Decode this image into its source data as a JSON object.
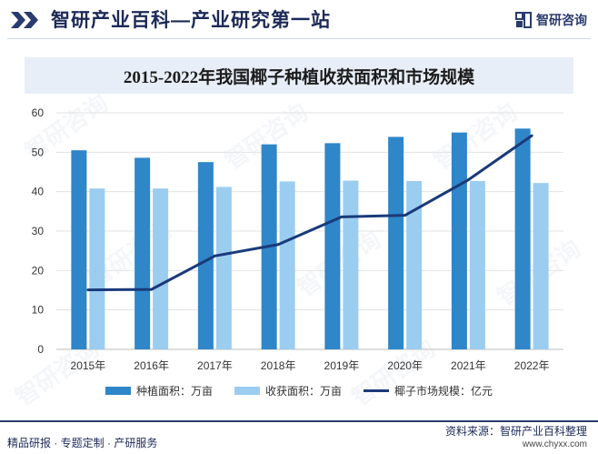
{
  "header": {
    "title": "智研产业百科—产业研究第一站",
    "brand": "智研咨询",
    "logo_icon": "zhiyan-logo-icon"
  },
  "watermark": "智研咨询",
  "footer": {
    "left": "精品研报 · 专题定制 · 产研服务",
    "source": "资料来源：智研产业百科整理",
    "url": "www.chyxx.com"
  },
  "colors": {
    "bar_planted": "#2f86c8",
    "bar_harvested": "#9bcdf0",
    "line_market": "#1a3a7a",
    "accent": "#1d2a57"
  },
  "chart_data": {
    "type": "bar",
    "title": "2015-2022年我国椰子种植收获面积和市场规模",
    "categories": [
      "2015年",
      "2016年",
      "2017年",
      "2018年",
      "2019年",
      "2020年",
      "2021年",
      "2022年"
    ],
    "ylim": [
      0,
      60
    ],
    "yticks": [
      "0",
      "10",
      "20",
      "30",
      "40",
      "50",
      "60"
    ],
    "grid": true,
    "legend_position": "bottom",
    "series": [
      {
        "name": "种植面积：万亩",
        "type": "bar",
        "values": [
          50.5,
          48.6,
          47.5,
          52.0,
          52.3,
          53.9,
          55.0,
          56.0
        ]
      },
      {
        "name": "收获面积：万亩",
        "type": "bar",
        "values": [
          40.8,
          40.8,
          41.2,
          42.6,
          42.8,
          42.7,
          42.7,
          42.2
        ]
      },
      {
        "name": "椰子市场规模：亿元",
        "type": "line",
        "values": [
          15.1,
          15.2,
          23.7,
          26.6,
          33.6,
          34.0,
          43.0,
          54.2
        ]
      }
    ]
  }
}
